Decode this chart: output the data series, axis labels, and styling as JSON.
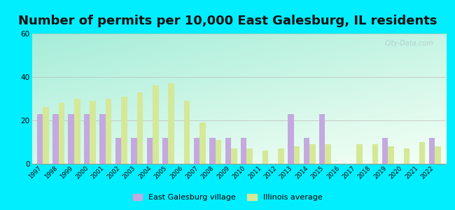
{
  "title": "Number of permits per 10,000 East Galesburg, IL residents",
  "years": [
    1997,
    1998,
    1999,
    2000,
    2001,
    2002,
    2003,
    2004,
    2005,
    2006,
    2007,
    2008,
    2009,
    2010,
    2011,
    2012,
    2013,
    2014,
    2015,
    2016,
    2017,
    2018,
    2019,
    2020,
    2021,
    2022
  ],
  "east_galesburg": [
    23,
    23,
    23,
    23,
    23,
    12,
    12,
    12,
    12,
    0,
    12,
    12,
    12,
    12,
    0,
    0,
    23,
    12,
    23,
    0,
    0,
    0,
    12,
    0,
    0,
    12
  ],
  "illinois_avg": [
    26,
    28,
    30,
    29,
    30,
    31,
    33,
    36,
    37,
    29,
    19,
    11,
    7,
    7,
    6,
    7,
    8,
    9,
    9,
    0,
    9,
    9,
    8,
    7,
    10,
    8
  ],
  "village_color": "#c4a8e0",
  "illinois_color": "#d4e897",
  "background_outer": "#00eeff",
  "ylim": [
    0,
    60
  ],
  "yticks": [
    0,
    20,
    40,
    60
  ],
  "legend_village": "East Galesburg village",
  "legend_illinois": "Illinois average",
  "title_fontsize": 13,
  "bar_width": 0.38
}
